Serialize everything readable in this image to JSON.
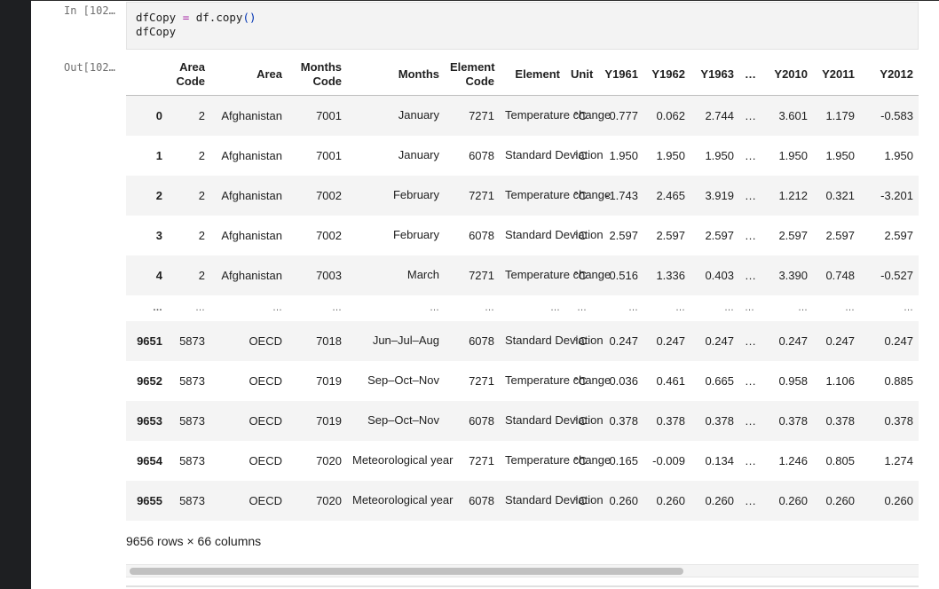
{
  "input_cell": {
    "prompt": "In [102…",
    "code_line1": {
      "var": "dfCopy",
      "op": "=",
      "call": "df.copy",
      "parens": "()"
    },
    "code_line2": "dfCopy"
  },
  "output_cell": {
    "prompt": "Out[102…",
    "table": {
      "columns": [
        "Area Code",
        "Area",
        "Months Code",
        "Months",
        "Element Code",
        "Element",
        "Unit",
        "Y1961",
        "Y1962",
        "Y1963",
        "…",
        "Y2010",
        "Y2011",
        "Y2012"
      ],
      "rows": [
        {
          "index": "0",
          "cells": [
            "2",
            "Afghanistan",
            "7001",
            "January",
            "7271",
            "Temperature change",
            "°C",
            "0.777",
            "0.062",
            "2.744",
            "…",
            "3.601",
            "1.179",
            "-0.583"
          ]
        },
        {
          "index": "1",
          "cells": [
            "2",
            "Afghanistan",
            "7001",
            "January",
            "6078",
            "Standard Deviation",
            "°C",
            "1.950",
            "1.950",
            "1.950",
            "…",
            "1.950",
            "1.950",
            "1.950"
          ]
        },
        {
          "index": "2",
          "cells": [
            "2",
            "Afghanistan",
            "7002",
            "February",
            "7271",
            "Temperature change",
            "°C",
            "-1.743",
            "2.465",
            "3.919",
            "…",
            "1.212",
            "0.321",
            "-3.201"
          ]
        },
        {
          "index": "3",
          "cells": [
            "2",
            "Afghanistan",
            "7002",
            "February",
            "6078",
            "Standard Deviation",
            "°C",
            "2.597",
            "2.597",
            "2.597",
            "…",
            "2.597",
            "2.597",
            "2.597"
          ]
        },
        {
          "index": "4",
          "cells": [
            "2",
            "Afghanistan",
            "7003",
            "March",
            "7271",
            "Temperature change",
            "°C",
            "0.516",
            "1.336",
            "0.403",
            "…",
            "3.390",
            "0.748",
            "-0.527"
          ]
        },
        {
          "index": "…",
          "cells": [
            "…",
            "…",
            "…",
            "…",
            "…",
            "…",
            "…",
            "…",
            "…",
            "…",
            "…",
            "…",
            "…",
            "…"
          ]
        },
        {
          "index": "9651",
          "cells": [
            "5873",
            "OECD",
            "7018",
            "Jun–Jul–Aug",
            "6078",
            "Standard Deviation",
            "°C",
            "0.247",
            "0.247",
            "0.247",
            "…",
            "0.247",
            "0.247",
            "0.247"
          ]
        },
        {
          "index": "9652",
          "cells": [
            "5873",
            "OECD",
            "7019",
            "Sep–Oct–Nov",
            "7271",
            "Temperature change",
            "°C",
            "0.036",
            "0.461",
            "0.665",
            "…",
            "0.958",
            "1.106",
            "0.885"
          ]
        },
        {
          "index": "9653",
          "cells": [
            "5873",
            "OECD",
            "7019",
            "Sep–Oct–Nov",
            "6078",
            "Standard Deviation",
            "°C",
            "0.378",
            "0.378",
            "0.378",
            "…",
            "0.378",
            "0.378",
            "0.378"
          ]
        },
        {
          "index": "9654",
          "cells": [
            "5873",
            "OECD",
            "7020",
            "Meteorological year",
            "7271",
            "Temperature change",
            "°C",
            "0.165",
            "-0.009",
            "0.134",
            "…",
            "1.246",
            "0.805",
            "1.274"
          ]
        },
        {
          "index": "9655",
          "cells": [
            "5873",
            "OECD",
            "7020",
            "Meteorological year",
            "6078",
            "Standard Deviation",
            "°C",
            "0.260",
            "0.260",
            "0.260",
            "…",
            "0.260",
            "0.260",
            "0.260"
          ]
        }
      ]
    },
    "shape_text": "9656 rows × 66 columns",
    "scroll_position": 0
  }
}
